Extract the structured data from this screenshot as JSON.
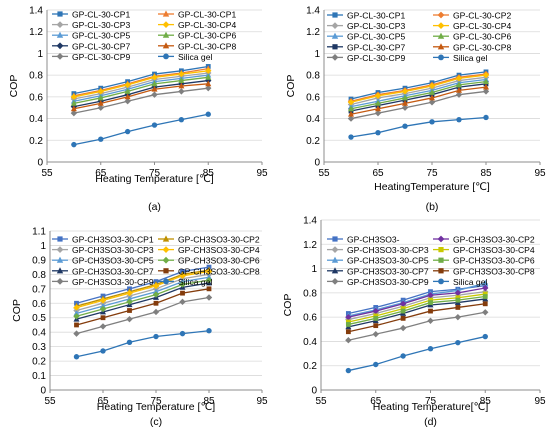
{
  "chart_data": [
    {
      "type": "line",
      "panel_label": "(a)",
      "xlabel": "Heating Temperature [℃]",
      "ylabel": "COP",
      "xlim": [
        55,
        95
      ],
      "ylim": [
        0,
        1.4
      ],
      "xticks": [
        "55",
        "65",
        "75",
        "85",
        "95"
      ],
      "yticks": [
        "0",
        "0.2",
        "0.4",
        "0.6",
        "0.8",
        "1",
        "1.2",
        "1.4"
      ],
      "legend_position": "top",
      "x": [
        60,
        65,
        70,
        75,
        80,
        85
      ],
      "series": [
        {
          "name": "GP-CL-30-CP1",
          "color": "#2e75b6",
          "marker": "square",
          "values": [
            0.63,
            0.68,
            0.74,
            0.81,
            0.84,
            0.88
          ]
        },
        {
          "name": "GP-CL-30-CP3",
          "color": "#a5a5a5",
          "marker": "diamond",
          "values": [
            0.58,
            0.63,
            0.69,
            0.76,
            0.79,
            0.82
          ]
        },
        {
          "name": "GP-CL-30-CP5",
          "color": "#5b9bd5",
          "marker": "triangle",
          "values": [
            0.56,
            0.61,
            0.67,
            0.74,
            0.77,
            0.8
          ]
        },
        {
          "name": "GP-CL-30-CP7",
          "color": "#1f3864",
          "marker": "diamond",
          "values": [
            0.51,
            0.56,
            0.62,
            0.69,
            0.72,
            0.75
          ]
        },
        {
          "name": "GP-CL-30-CP9",
          "color": "#7f7f7f",
          "marker": "diamond",
          "values": [
            0.45,
            0.5,
            0.56,
            0.62,
            0.65,
            0.68
          ]
        },
        {
          "name": "GP-CL-30-CP1",
          "color": "#ed7d31",
          "marker": "triangle",
          "values": [
            0.61,
            0.66,
            0.72,
            0.79,
            0.82,
            0.86
          ]
        },
        {
          "name": "GP-CL-30-CP4",
          "color": "#ffc000",
          "marker": "diamond",
          "values": [
            0.6,
            0.65,
            0.71,
            0.78,
            0.81,
            0.84
          ]
        },
        {
          "name": "GP-CL-30-CP6",
          "color": "#70ad47",
          "marker": "triangle",
          "values": [
            0.54,
            0.59,
            0.65,
            0.72,
            0.75,
            0.78
          ]
        },
        {
          "name": "GP-CL-30-CP8",
          "color": "#c55a11",
          "marker": "triangle",
          "values": [
            0.49,
            0.54,
            0.6,
            0.67,
            0.7,
            0.72
          ]
        },
        {
          "name": "Silica gel",
          "color": "#2e75b6",
          "marker": "circle",
          "values": [
            0.16,
            0.21,
            0.28,
            0.34,
            0.39,
            0.44
          ]
        }
      ]
    },
    {
      "type": "line",
      "panel_label": "(b)",
      "xlabel": "HeatingTemperature [℃]",
      "ylabel": "COP",
      "xlim": [
        55,
        95
      ],
      "ylim": [
        0,
        1.4
      ],
      "xticks": [
        "55",
        "65",
        "75",
        "85",
        "95"
      ],
      "yticks": [
        "0",
        "0.2",
        "0.4",
        "0.6",
        "0.8",
        "1",
        "1.2",
        "1.4"
      ],
      "legend_position": "top",
      "x": [
        60,
        65,
        70,
        75,
        80,
        85
      ],
      "series": [
        {
          "name": "GP-CL-30-CP1",
          "color": "#2e75b6",
          "marker": "square",
          "values": [
            0.58,
            0.64,
            0.68,
            0.73,
            0.8,
            0.83
          ]
        },
        {
          "name": "GP-CL-30-CP3",
          "color": "#a5a5a5",
          "marker": "diamond",
          "values": [
            0.53,
            0.59,
            0.63,
            0.68,
            0.75,
            0.78
          ]
        },
        {
          "name": "GP-CL-30-CP5",
          "color": "#5b9bd5",
          "marker": "triangle",
          "values": [
            0.51,
            0.56,
            0.61,
            0.66,
            0.73,
            0.76
          ]
        },
        {
          "name": "GP-CL-30-CP7",
          "color": "#1f3864",
          "marker": "square",
          "values": [
            0.47,
            0.52,
            0.57,
            0.62,
            0.69,
            0.72
          ]
        },
        {
          "name": "GP-CL-30-CP9",
          "color": "#7f7f7f",
          "marker": "diamond",
          "values": [
            0.4,
            0.45,
            0.5,
            0.55,
            0.62,
            0.65
          ]
        },
        {
          "name": "GP-CL-30-CP2",
          "color": "#ed7d31",
          "marker": "diamond",
          "values": [
            0.56,
            0.62,
            0.66,
            0.71,
            0.78,
            0.81
          ]
        },
        {
          "name": "GP-CL-30-CP4",
          "color": "#ffc000",
          "marker": "diamond",
          "values": [
            0.55,
            0.61,
            0.65,
            0.7,
            0.77,
            0.8
          ]
        },
        {
          "name": "GP-CL-30-CP6",
          "color": "#70ad47",
          "marker": "triangle",
          "values": [
            0.49,
            0.54,
            0.59,
            0.64,
            0.71,
            0.74
          ]
        },
        {
          "name": "GP-CL-30-CP8",
          "color": "#c55a11",
          "marker": "triangle",
          "values": [
            0.44,
            0.49,
            0.54,
            0.59,
            0.66,
            0.69
          ]
        },
        {
          "name": "Silica gel",
          "color": "#2e75b6",
          "marker": "circle",
          "values": [
            0.23,
            0.27,
            0.33,
            0.37,
            0.39,
            0.41
          ]
        }
      ]
    },
    {
      "type": "line",
      "panel_label": "(c)",
      "xlabel": "Heating Temperature [℃]",
      "ylabel": "COP",
      "xlim": [
        55,
        95
      ],
      "ylim": [
        0,
        1.1
      ],
      "xticks": [
        "55",
        "65",
        "75",
        "85",
        "95"
      ],
      "yticks": [
        "0",
        "0.1",
        "0.2",
        "0.3",
        "0.4",
        "0.5",
        "0.6",
        "0.7",
        "0.8",
        "0.9",
        "1",
        "1.1"
      ],
      "legend_position": "top",
      "x": [
        60,
        65,
        70,
        75,
        80,
        85
      ],
      "series": [
        {
          "name": "GP-CH3SO3-30-CP1",
          "color": "#4472c4",
          "marker": "square",
          "values": [
            0.6,
            0.65,
            0.7,
            0.75,
            0.82,
            0.85
          ]
        },
        {
          "name": "GP-CH3SO3-30-CP3",
          "color": "#a5a5a5",
          "marker": "diamond",
          "values": [
            0.55,
            0.6,
            0.65,
            0.7,
            0.77,
            0.8
          ]
        },
        {
          "name": "GP-CH3SO3-30-CP5",
          "color": "#5b9bd5",
          "marker": "triangle",
          "values": [
            0.53,
            0.58,
            0.63,
            0.68,
            0.75,
            0.78
          ]
        },
        {
          "name": "GP-CH3SO3-30-CP7",
          "color": "#1f3864",
          "marker": "triangle",
          "values": [
            0.49,
            0.54,
            0.59,
            0.64,
            0.71,
            0.74
          ]
        },
        {
          "name": "GP-CH3SO3-30-CP9",
          "color": "#7f7f7f",
          "marker": "diamond",
          "values": [
            0.39,
            0.44,
            0.49,
            0.54,
            0.61,
            0.64
          ]
        },
        {
          "name": "GP-CH3SO3-30-CP2",
          "color": "#bf9000",
          "marker": "triangle",
          "values": [
            0.58,
            0.63,
            0.68,
            0.73,
            0.8,
            0.83
          ]
        },
        {
          "name": "GP-CH3SO3-30-CP4",
          "color": "#ffc000",
          "marker": "diamond",
          "values": [
            0.57,
            0.62,
            0.67,
            0.72,
            0.79,
            0.82
          ]
        },
        {
          "name": "GP-CH3SO3-30-CP6",
          "color": "#70ad47",
          "marker": "diamond",
          "values": [
            0.51,
            0.56,
            0.61,
            0.66,
            0.73,
            0.76
          ]
        },
        {
          "name": "GP-CH3SO3-30-CP8",
          "color": "#843c0c",
          "marker": "square",
          "values": [
            0.45,
            0.5,
            0.55,
            0.6,
            0.67,
            0.7
          ]
        },
        {
          "name": "Silica gel",
          "color": "#2e75b6",
          "marker": "circle",
          "values": [
            0.23,
            0.27,
            0.33,
            0.37,
            0.39,
            0.41
          ]
        }
      ]
    },
    {
      "type": "line",
      "panel_label": "(d)",
      "xlabel": "Heating Temperature[℃]",
      "ylabel": "COP",
      "xlim": [
        55,
        95
      ],
      "ylim": [
        0,
        1.4
      ],
      "xticks": [
        "55",
        "65",
        "75",
        "85",
        "95"
      ],
      "yticks": [
        "0",
        "0.2",
        "0.4",
        "0.6",
        "0.8",
        "1",
        "1.2",
        "1.4"
      ],
      "legend_position": "top",
      "x": [
        60,
        65,
        70,
        75,
        80,
        85
      ],
      "series": [
        {
          "name": "GP-CH3SO3-",
          "color": "#4472c4",
          "marker": "square",
          "values": [
            0.63,
            0.68,
            0.74,
            0.81,
            0.83,
            0.86
          ]
        },
        {
          "name": "GP-CH3SO3-30-CP3",
          "color": "#a5a5a5",
          "marker": "diamond",
          "values": [
            0.58,
            0.63,
            0.69,
            0.76,
            0.78,
            0.81
          ]
        },
        {
          "name": "GP-CH3SO3-30-CP5",
          "color": "#5b9bd5",
          "marker": "triangle",
          "values": [
            0.61,
            0.66,
            0.72,
            0.79,
            0.82,
            0.88
          ]
        },
        {
          "name": "GP-CH3SO3-30-CP7",
          "color": "#1f3864",
          "marker": "triangle",
          "values": [
            0.52,
            0.57,
            0.63,
            0.7,
            0.72,
            0.75
          ]
        },
        {
          "name": "GP-CH3SO3-30-CP9",
          "color": "#7f7f7f",
          "marker": "diamond",
          "values": [
            0.41,
            0.46,
            0.51,
            0.57,
            0.6,
            0.64
          ]
        },
        {
          "name": "GP-CH3SO3-30-CP2",
          "color": "#7030a0",
          "marker": "diamond",
          "values": [
            0.6,
            0.65,
            0.71,
            0.78,
            0.8,
            0.84
          ]
        },
        {
          "name": "GP-CH3SO3-30-CP4",
          "color": "#c9c900",
          "marker": "square",
          "values": [
            0.56,
            0.61,
            0.67,
            0.74,
            0.76,
            0.79
          ]
        },
        {
          "name": "GP-CH3SO3-30-CP6",
          "color": "#70ad47",
          "marker": "square",
          "values": [
            0.54,
            0.59,
            0.65,
            0.72,
            0.74,
            0.77
          ]
        },
        {
          "name": "GP-CH3SO3-30-CP8",
          "color": "#843c0c",
          "marker": "square",
          "values": [
            0.48,
            0.53,
            0.59,
            0.65,
            0.68,
            0.71
          ]
        },
        {
          "name": "Silica gel",
          "color": "#2e75b6",
          "marker": "circle",
          "values": [
            0.16,
            0.21,
            0.28,
            0.34,
            0.39,
            0.44
          ]
        }
      ]
    }
  ]
}
